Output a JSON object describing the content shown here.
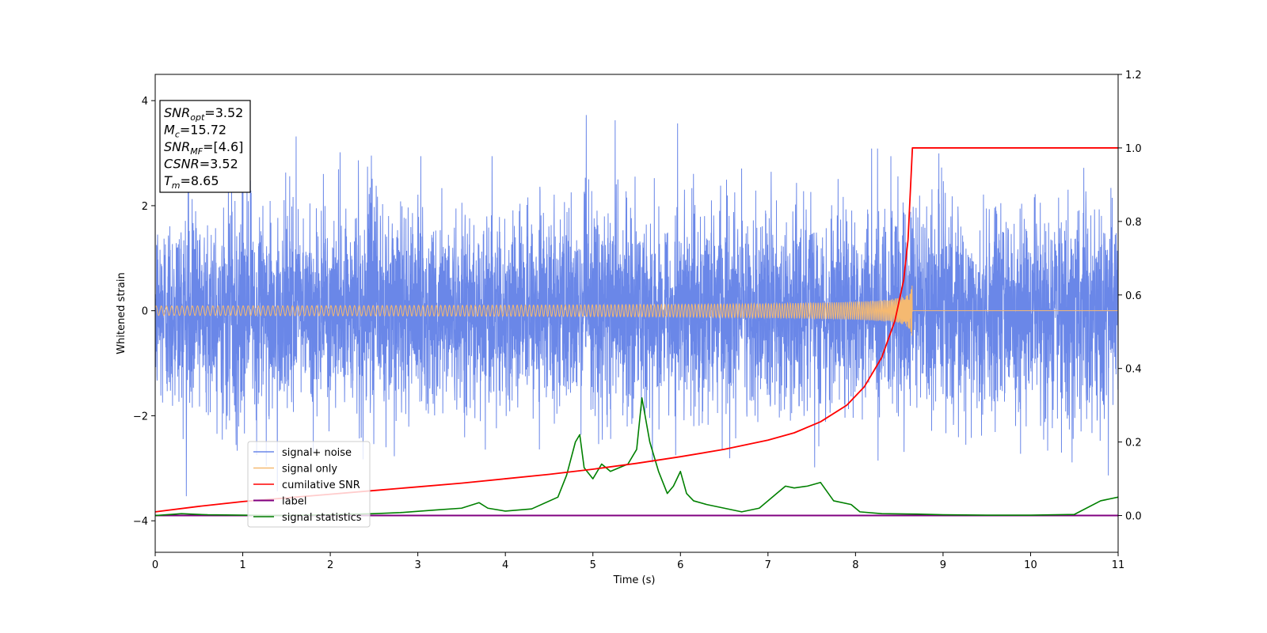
{
  "chart_data": {
    "type": "line",
    "xlabel": "Time (s)",
    "ylabel": "Whitened strain",
    "xlim": [
      0,
      11
    ],
    "ylim": [
      -4.6,
      4.5
    ],
    "y2lim": [
      -0.1,
      1.2
    ],
    "x_ticks": [
      "0",
      "1",
      "2",
      "3",
      "4",
      "5",
      "6",
      "7",
      "8",
      "9",
      "10",
      "11"
    ],
    "y_ticks": [
      "−4",
      "−2",
      "0",
      "2",
      "4"
    ],
    "y2_ticks": [
      "0.0",
      "0.2",
      "0.4",
      "0.6",
      "0.8",
      "1.0",
      "1.2"
    ],
    "grid": false,
    "legend_position": "lower-left",
    "annotation": {
      "lines": [
        {
          "sym": "SNR",
          "sub": "opt",
          "value": "=3.52"
        },
        {
          "sym": "M",
          "sub": "c",
          "value": "=15.72"
        },
        {
          "sym": "SNR",
          "sub": "MF",
          "value": "=[4.6]"
        },
        {
          "sym": "CSNR",
          "sub": "",
          "value": "=3.52"
        },
        {
          "sym": "T",
          "sub": "m",
          "value": "=8.65"
        }
      ]
    },
    "series": [
      {
        "name": "signal+ noise",
        "color": "#6a87e8",
        "axis": "left",
        "kind": "noise",
        "amplitude_range": [
          -3.8,
          4.05
        ],
        "typical_envelope": [
          -2.6,
          2.7
        ]
      },
      {
        "name": "signal only",
        "color": "#f5b971",
        "axis": "left",
        "kind": "chirp",
        "merger_time": 8.65,
        "peak_amplitude": 0.62
      },
      {
        "name": "cumilative SNR",
        "color": "#ff0000",
        "axis": "right",
        "x": [
          0,
          0.5,
          1,
          1.5,
          2,
          2.5,
          3,
          3.5,
          4,
          4.5,
          5,
          5.5,
          6,
          6.5,
          7,
          7.3,
          7.6,
          7.9,
          8.1,
          8.3,
          8.45,
          8.55,
          8.6,
          8.65,
          11
        ],
        "values": [
          0.01,
          0.025,
          0.038,
          0.048,
          0.058,
          0.068,
          0.078,
          0.088,
          0.1,
          0.112,
          0.126,
          0.142,
          0.16,
          0.18,
          0.205,
          0.225,
          0.255,
          0.3,
          0.35,
          0.43,
          0.53,
          0.64,
          0.75,
          1.0,
          1.0
        ]
      },
      {
        "name": "label",
        "color": "#800080",
        "axis": "right",
        "x": [
          0,
          11
        ],
        "values": [
          0.0,
          0.0
        ]
      },
      {
        "name": "signal statistics",
        "color": "#008000",
        "axis": "right",
        "x": [
          0,
          0.3,
          0.6,
          1.0,
          1.5,
          2.0,
          2.5,
          2.8,
          3.2,
          3.5,
          3.7,
          3.8,
          4.0,
          4.3,
          4.6,
          4.7,
          4.8,
          4.85,
          4.9,
          5.0,
          5.1,
          5.2,
          5.3,
          5.4,
          5.5,
          5.56,
          5.65,
          5.75,
          5.85,
          5.92,
          6.0,
          6.07,
          6.15,
          6.3,
          6.5,
          6.7,
          6.9,
          7.1,
          7.2,
          7.3,
          7.45,
          7.6,
          7.75,
          7.95,
          8.05,
          8.3,
          8.7,
          9.0,
          9.5,
          10.0,
          10.5,
          10.8,
          11.0
        ],
        "values": [
          0.0,
          0.005,
          0.002,
          0.001,
          0.0,
          0.002,
          0.005,
          0.008,
          0.015,
          0.02,
          0.035,
          0.02,
          0.012,
          0.018,
          0.05,
          0.11,
          0.2,
          0.22,
          0.13,
          0.1,
          0.14,
          0.12,
          0.13,
          0.14,
          0.18,
          0.32,
          0.2,
          0.12,
          0.06,
          0.08,
          0.12,
          0.06,
          0.04,
          0.03,
          0.02,
          0.01,
          0.02,
          0.06,
          0.08,
          0.075,
          0.08,
          0.09,
          0.04,
          0.03,
          0.01,
          0.005,
          0.004,
          0.002,
          0.001,
          0.001,
          0.003,
          0.04,
          0.05
        ]
      }
    ]
  }
}
